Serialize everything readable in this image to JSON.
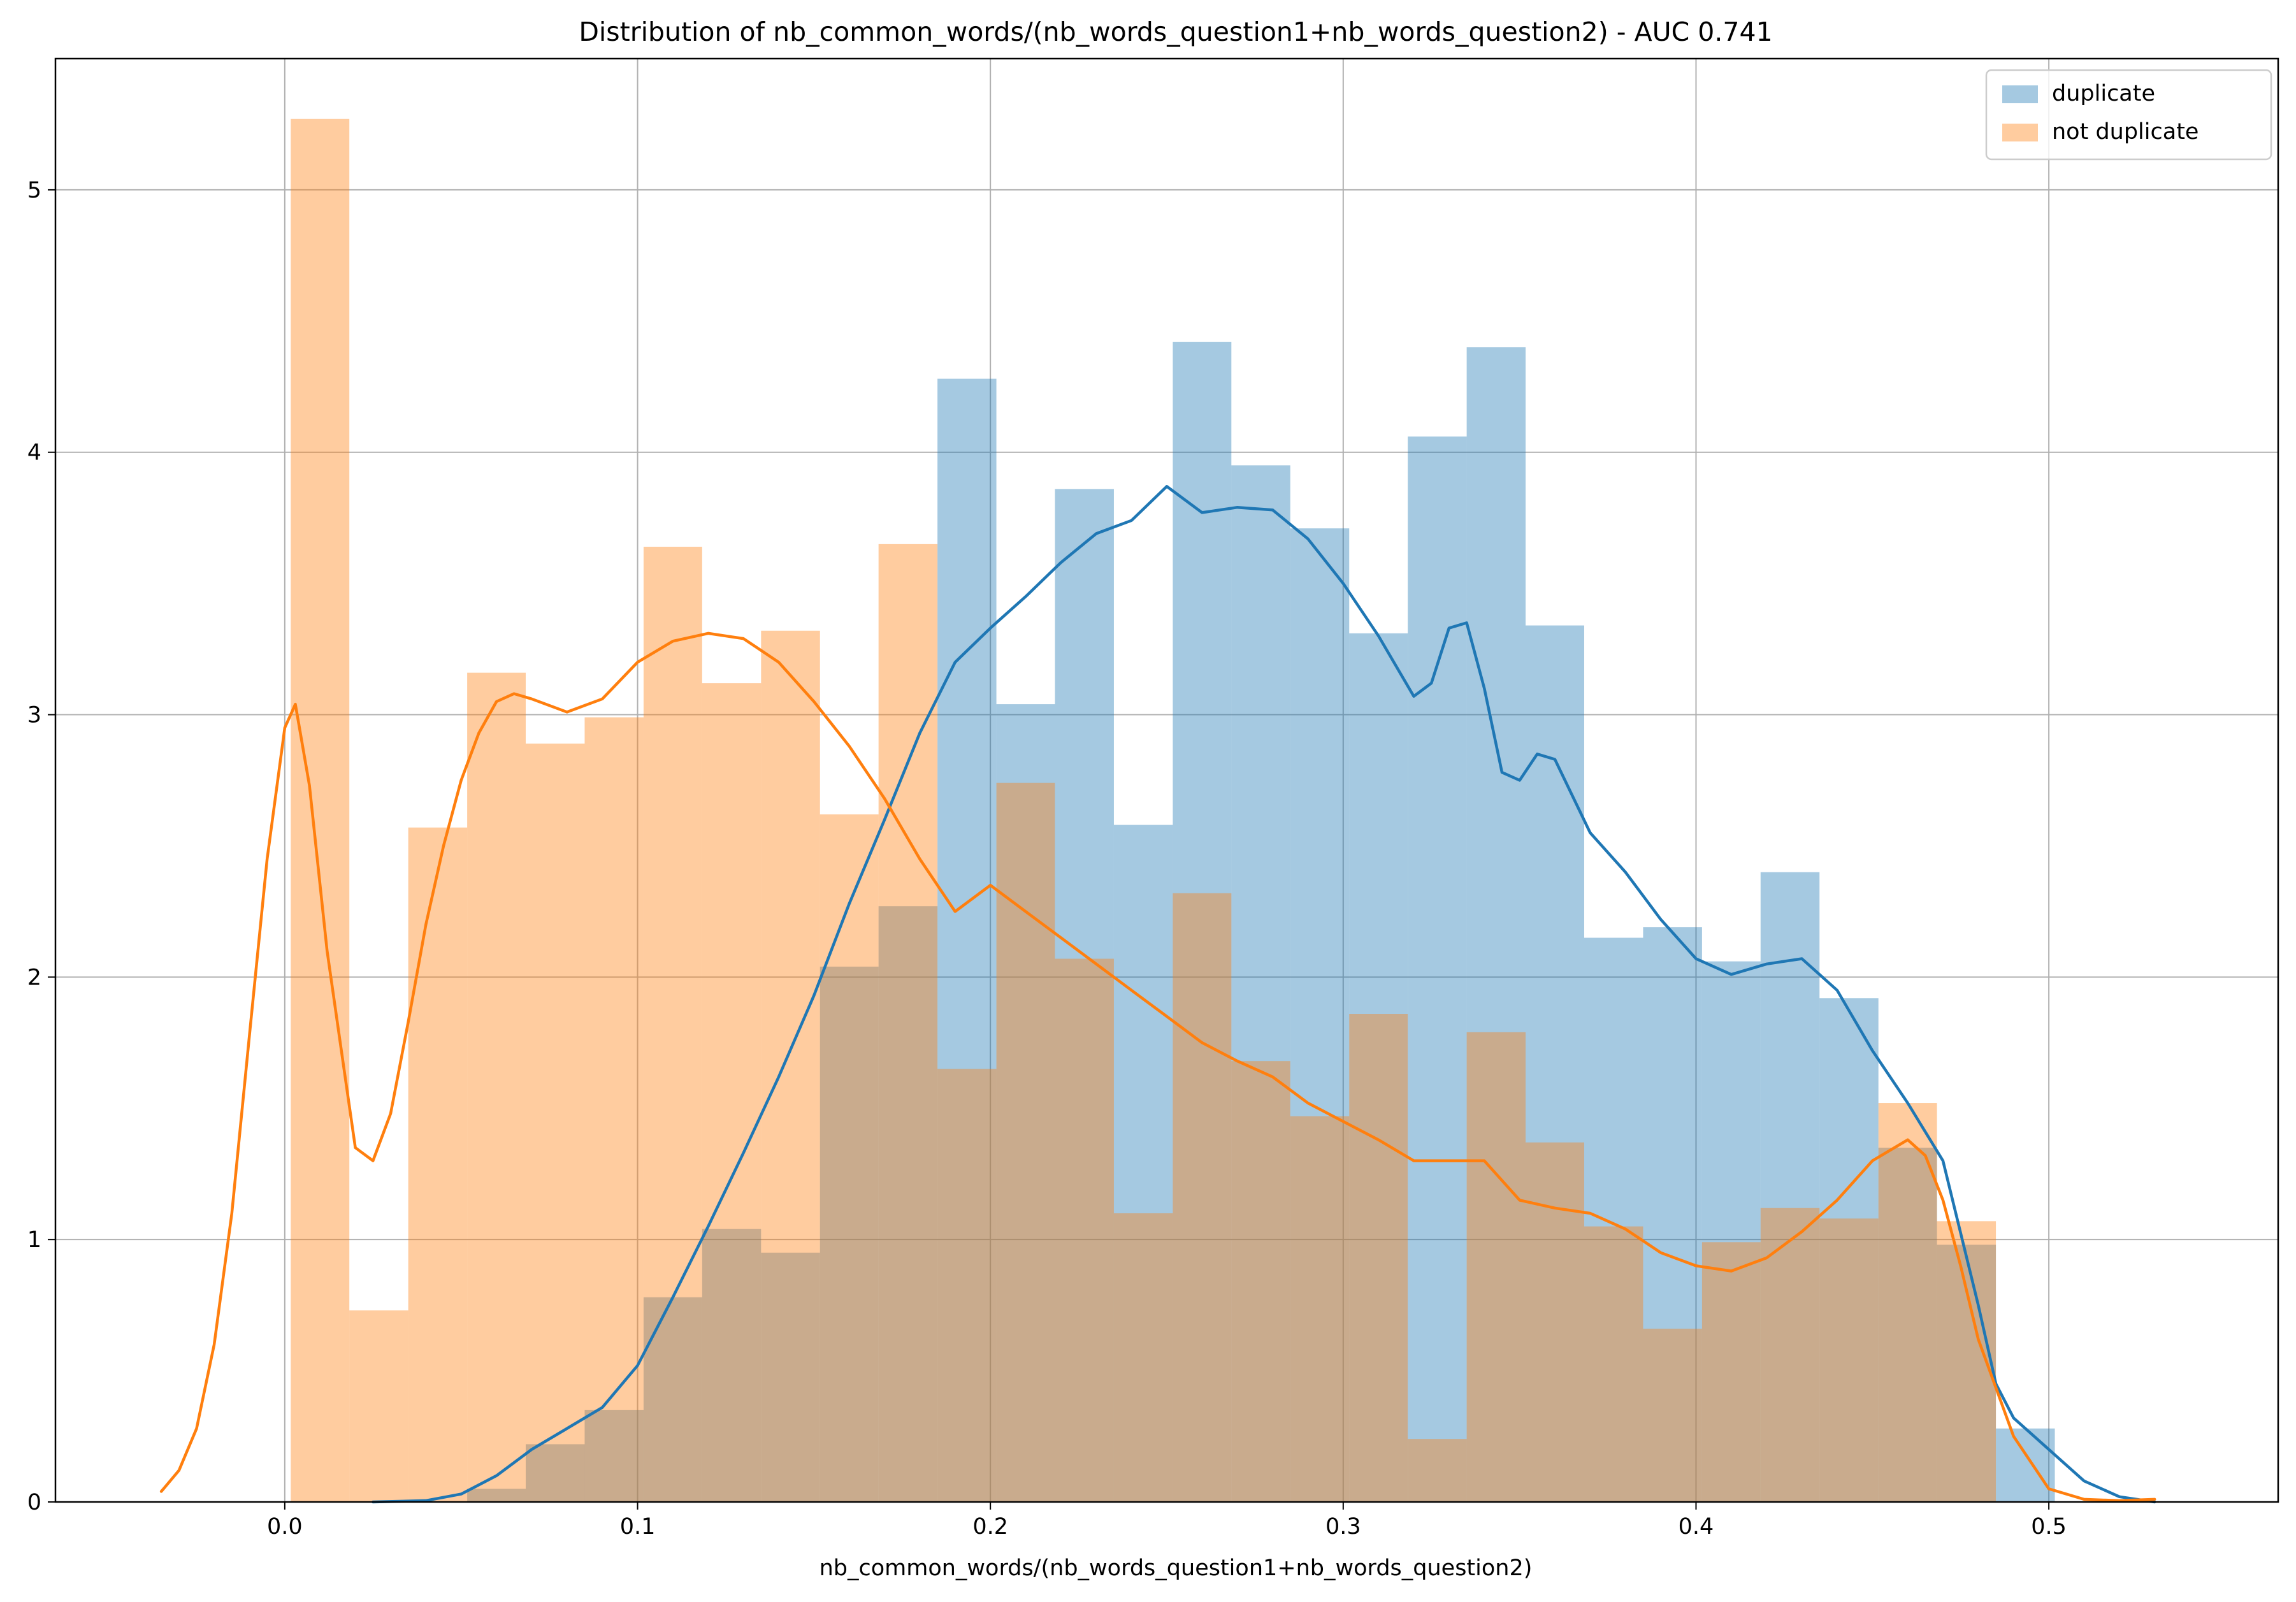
{
  "chart_data": {
    "type": "histogram",
    "title": "Distribution of nb_common_words/(nb_words_question1+nb_words_question2) - AUC 0.741",
    "xlabel": "nb_common_words/(nb_words_question1+nb_words_question2)",
    "ylabel": "",
    "xlim": [
      -0.065,
      0.565
    ],
    "ylim": [
      0,
      5.5
    ],
    "xticks": [
      0.0,
      0.1,
      0.2,
      0.3,
      0.4,
      0.5
    ],
    "xtick_labels": [
      "0.0",
      "0.1",
      "0.2",
      "0.3",
      "0.4",
      "0.5"
    ],
    "yticks": [
      0,
      1,
      2,
      3,
      4,
      5
    ],
    "ytick_labels": [
      "0",
      "1",
      "2",
      "3",
      "4",
      "5"
    ],
    "grid": true,
    "legend_position": "top-right",
    "series": [
      {
        "name": "duplicate",
        "color": "#1f77b4",
        "bin_edges": [
          0.0517,
          0.0683,
          0.085,
          0.1017,
          0.1183,
          0.135,
          0.1517,
          0.1683,
          0.185,
          0.2017,
          0.2183,
          0.235,
          0.2517,
          0.2683,
          0.285,
          0.3017,
          0.3183,
          0.335,
          0.3517,
          0.3683,
          0.385,
          0.4017,
          0.4183,
          0.435,
          0.4517,
          0.4683,
          0.485,
          0.5017
        ],
        "counts": [
          0.05,
          0.22,
          0.35,
          0.78,
          1.04,
          0.95,
          2.04,
          2.27,
          4.28,
          3.04,
          3.86,
          2.58,
          4.42,
          3.95,
          3.71,
          3.31,
          4.06,
          4.4,
          3.34,
          2.15,
          2.19,
          2.06,
          2.4,
          1.92,
          1.35,
          0.98,
          0.28
        ],
        "kde": [
          [
            0.025,
            0.0
          ],
          [
            0.04,
            0.005
          ],
          [
            0.05,
            0.03
          ],
          [
            0.06,
            0.1
          ],
          [
            0.07,
            0.2
          ],
          [
            0.08,
            0.28
          ],
          [
            0.09,
            0.36
          ],
          [
            0.1,
            0.52
          ],
          [
            0.11,
            0.78
          ],
          [
            0.12,
            1.05
          ],
          [
            0.13,
            1.33
          ],
          [
            0.14,
            1.62
          ],
          [
            0.15,
            1.93
          ],
          [
            0.16,
            2.28
          ],
          [
            0.17,
            2.6
          ],
          [
            0.18,
            2.93
          ],
          [
            0.19,
            3.2
          ],
          [
            0.2,
            3.33
          ],
          [
            0.21,
            3.45
          ],
          [
            0.22,
            3.58
          ],
          [
            0.23,
            3.69
          ],
          [
            0.24,
            3.74
          ],
          [
            0.25,
            3.87
          ],
          [
            0.26,
            3.77
          ],
          [
            0.27,
            3.79
          ],
          [
            0.28,
            3.78
          ],
          [
            0.29,
            3.67
          ],
          [
            0.3,
            3.5
          ],
          [
            0.31,
            3.3
          ],
          [
            0.32,
            3.07
          ],
          [
            0.325,
            3.12
          ],
          [
            0.33,
            3.33
          ],
          [
            0.335,
            3.35
          ],
          [
            0.34,
            3.1
          ],
          [
            0.345,
            2.78
          ],
          [
            0.35,
            2.75
          ],
          [
            0.355,
            2.85
          ],
          [
            0.36,
            2.83
          ],
          [
            0.37,
            2.55
          ],
          [
            0.38,
            2.4
          ],
          [
            0.39,
            2.22
          ],
          [
            0.4,
            2.07
          ],
          [
            0.41,
            2.01
          ],
          [
            0.42,
            2.05
          ],
          [
            0.43,
            2.07
          ],
          [
            0.44,
            1.95
          ],
          [
            0.45,
            1.72
          ],
          [
            0.46,
            1.52
          ],
          [
            0.47,
            1.3
          ],
          [
            0.48,
            0.75
          ],
          [
            0.485,
            0.45
          ],
          [
            0.49,
            0.32
          ],
          [
            0.5,
            0.2
          ],
          [
            0.51,
            0.08
          ],
          [
            0.52,
            0.02
          ],
          [
            0.53,
            0.0
          ]
        ]
      },
      {
        "name": "not duplicate",
        "color": "#ff7f0e",
        "bin_edges": [
          0.0017,
          0.0183,
          0.035,
          0.0517,
          0.0683,
          0.085,
          0.1017,
          0.1183,
          0.135,
          0.1517,
          0.1683,
          0.185,
          0.2017,
          0.2183,
          0.235,
          0.2517,
          0.2683,
          0.285,
          0.3017,
          0.3183,
          0.335,
          0.3517,
          0.3683,
          0.385,
          0.4017,
          0.4183,
          0.435,
          0.4517,
          0.4683,
          0.485
        ],
        "counts": [
          5.27,
          0.73,
          2.57,
          3.16,
          2.89,
          2.99,
          3.64,
          3.12,
          3.32,
          2.62,
          3.65,
          1.65,
          2.74,
          2.07,
          1.1,
          2.32,
          1.68,
          1.47,
          1.86,
          0.24,
          1.79,
          1.37,
          1.05,
          0.66,
          0.99,
          1.12,
          1.08,
          1.52,
          1.07
        ],
        "kde": [
          [
            -0.035,
            0.04
          ],
          [
            -0.03,
            0.12
          ],
          [
            -0.025,
            0.28
          ],
          [
            -0.02,
            0.6
          ],
          [
            -0.015,
            1.1
          ],
          [
            -0.01,
            1.78
          ],
          [
            -0.005,
            2.45
          ],
          [
            0.0,
            2.95
          ],
          [
            0.003,
            3.04
          ],
          [
            0.007,
            2.73
          ],
          [
            0.012,
            2.1
          ],
          [
            0.017,
            1.63
          ],
          [
            0.02,
            1.35
          ],
          [
            0.025,
            1.3
          ],
          [
            0.03,
            1.48
          ],
          [
            0.035,
            1.83
          ],
          [
            0.04,
            2.2
          ],
          [
            0.045,
            2.5
          ],
          [
            0.05,
            2.75
          ],
          [
            0.055,
            2.93
          ],
          [
            0.06,
            3.05
          ],
          [
            0.065,
            3.08
          ],
          [
            0.07,
            3.06
          ],
          [
            0.08,
            3.01
          ],
          [
            0.09,
            3.06
          ],
          [
            0.1,
            3.2
          ],
          [
            0.11,
            3.28
          ],
          [
            0.12,
            3.31
          ],
          [
            0.13,
            3.29
          ],
          [
            0.14,
            3.2
          ],
          [
            0.15,
            3.05
          ],
          [
            0.16,
            2.88
          ],
          [
            0.17,
            2.68
          ],
          [
            0.18,
            2.45
          ],
          [
            0.19,
            2.25
          ],
          [
            0.2,
            2.35
          ],
          [
            0.21,
            2.25
          ],
          [
            0.22,
            2.15
          ],
          [
            0.23,
            2.05
          ],
          [
            0.24,
            1.95
          ],
          [
            0.25,
            1.85
          ],
          [
            0.26,
            1.75
          ],
          [
            0.27,
            1.68
          ],
          [
            0.28,
            1.62
          ],
          [
            0.29,
            1.52
          ],
          [
            0.3,
            1.45
          ],
          [
            0.31,
            1.38
          ],
          [
            0.32,
            1.3
          ],
          [
            0.33,
            1.3
          ],
          [
            0.34,
            1.3
          ],
          [
            0.35,
            1.15
          ],
          [
            0.36,
            1.12
          ],
          [
            0.37,
            1.1
          ],
          [
            0.38,
            1.04
          ],
          [
            0.39,
            0.95
          ],
          [
            0.4,
            0.9
          ],
          [
            0.41,
            0.88
          ],
          [
            0.42,
            0.93
          ],
          [
            0.43,
            1.03
          ],
          [
            0.44,
            1.15
          ],
          [
            0.45,
            1.3
          ],
          [
            0.46,
            1.38
          ],
          [
            0.465,
            1.32
          ],
          [
            0.47,
            1.15
          ],
          [
            0.475,
            0.9
          ],
          [
            0.48,
            0.62
          ],
          [
            0.49,
            0.25
          ],
          [
            0.5,
            0.05
          ],
          [
            0.51,
            0.01
          ],
          [
            0.52,
            0.005
          ],
          [
            0.53,
            0.01
          ]
        ]
      }
    ]
  }
}
